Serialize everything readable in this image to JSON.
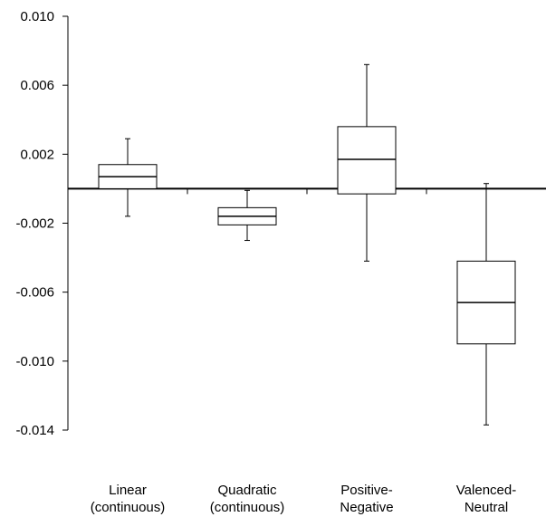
{
  "chart_data": {
    "type": "box",
    "title": "",
    "xlabel": "",
    "ylabel": "",
    "ylim": [
      -0.014,
      0.01
    ],
    "yticks": [
      {
        "value": 0.01,
        "label": "0.010"
      },
      {
        "value": 0.006,
        "label": "0.006"
      },
      {
        "value": 0.002,
        "label": "0.002"
      },
      {
        "value": -0.002,
        "label": "-0.002"
      },
      {
        "value": -0.006,
        "label": "-0.006"
      },
      {
        "value": -0.01,
        "label": "-0.010"
      },
      {
        "value": -0.014,
        "label": "-0.014"
      }
    ],
    "reference_line": 0,
    "categories": [
      {
        "line1": "Linear",
        "line2": "(continuous)"
      },
      {
        "line1": "Quadratic",
        "line2": "(continuous)"
      },
      {
        "line1": "Positive-",
        "line2": "Negative"
      },
      {
        "line1": "Valenced-",
        "line2": "Neutral"
      }
    ],
    "boxes": [
      {
        "whisker_low": -0.0016,
        "q1": 0.0,
        "median": 0.0007,
        "q3": 0.0014,
        "whisker_high": 0.0029
      },
      {
        "whisker_low": -0.003,
        "q1": -0.0021,
        "median": -0.0016,
        "q3": -0.0011,
        "whisker_high": -0.0001
      },
      {
        "whisker_low": -0.0042,
        "q1": -0.0003,
        "median": 0.0017,
        "q3": 0.0036,
        "whisker_high": 0.0072
      },
      {
        "whisker_low": -0.0137,
        "q1": -0.009,
        "median": -0.0066,
        "q3": -0.0042,
        "whisker_high": 0.0003
      }
    ]
  }
}
